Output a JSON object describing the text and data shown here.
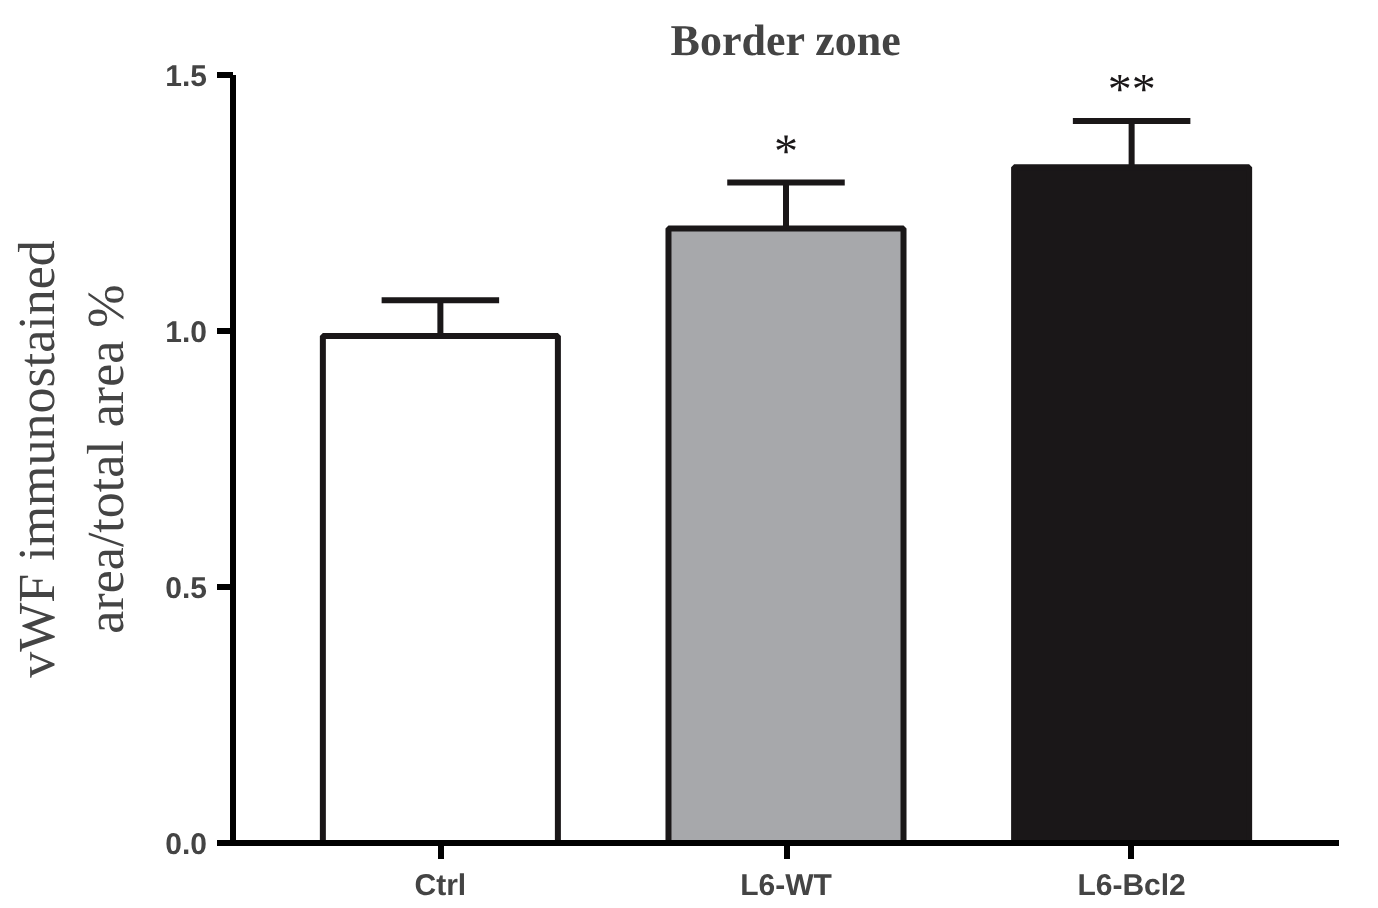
{
  "chart_data": {
    "type": "bar",
    "title": "Border zone",
    "ylabel": "vWF immunostained\narea/total area %",
    "categories": [
      "Ctrl",
      "L6-WT",
      "L6-Bcl2"
    ],
    "values": [
      0.99,
      1.2,
      1.32
    ],
    "colors": [
      "#ffffff",
      "#a7a8ab",
      "#1a1718"
    ],
    "errors": [
      [
        0.99,
        1.06
      ],
      [
        1.2,
        1.29
      ],
      [
        1.32,
        1.41
      ]
    ],
    "ylim": [
      0,
      1.5
    ],
    "yticks": [
      {
        "value": 0,
        "label": "0.0"
      },
      0.5,
      {
        "value": 1,
        "label": "1.0"
      },
      1.5
    ],
    "annotations": [
      "*",
      "**"
    ],
    "grid": false
  }
}
